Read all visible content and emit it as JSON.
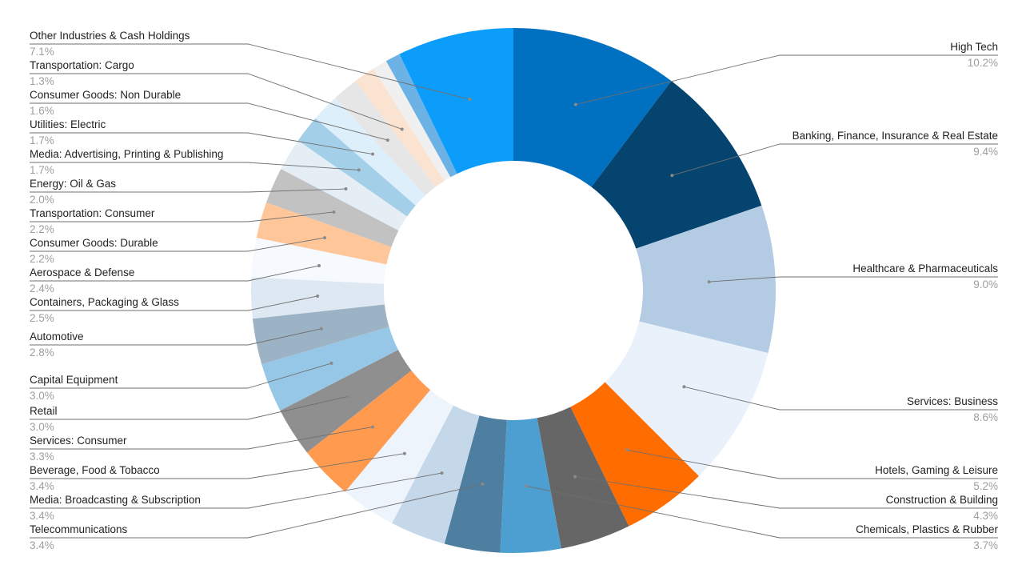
{
  "chart_data": {
    "type": "pie",
    "donut": true,
    "unit": "%",
    "legend": "none",
    "labels": "outside with leader lines",
    "slices": [
      {
        "name": "High Tech",
        "value": 10.2,
        "label": "10.2%",
        "color": "#0070c0"
      },
      {
        "name": "Banking, Finance, Insurance & Real Estate",
        "value": 9.4,
        "label": "9.4%",
        "color": "#064470"
      },
      {
        "name": "Healthcare & Pharmaceuticals",
        "value": 9.0,
        "label": "9.0%",
        "color": "#b3cce4"
      },
      {
        "name": "Services: Business",
        "value": 8.6,
        "label": "8.6%",
        "color": "#e9f1fb"
      },
      {
        "name": "Hotels, Gaming & Leisure",
        "value": 5.2,
        "label": "5.2%",
        "color": "#ff6d00"
      },
      {
        "name": "Construction & Building",
        "value": 4.3,
        "label": "4.3%",
        "color": "#666666"
      },
      {
        "name": "Chemicals, Plastics & Rubber",
        "value": 3.7,
        "label": "3.7%",
        "color": "#4e9fd1"
      },
      {
        "name": "Telecommunications",
        "value": 3.4,
        "label": "3.4%",
        "color": "#4f7fa0"
      },
      {
        "name": "Media: Broadcasting & Subscription",
        "value": 3.4,
        "label": "3.4%",
        "color": "#c5d8ea"
      },
      {
        "name": "Beverage, Food & Tobacco",
        "value": 3.4,
        "label": "3.4%",
        "color": "#eef4fc"
      },
      {
        "name": "Services: Consumer",
        "value": 3.3,
        "label": "3.3%",
        "color": "#ff9a4f"
      },
      {
        "name": "Retail",
        "value": 3.0,
        "label": "3.0%",
        "color": "#8f8f8f"
      },
      {
        "name": "Capital Equipment",
        "value": 3.0,
        "label": "3.0%",
        "color": "#97c7e6"
      },
      {
        "name": "Automotive",
        "value": 2.8,
        "label": "2.8%",
        "color": "#9cb3c5"
      },
      {
        "name": "Containers, Packaging & Glass",
        "value": 2.5,
        "label": "2.5%",
        "color": "#dde8f2"
      },
      {
        "name": "Aerospace & Defense",
        "value": 2.4,
        "label": "2.4%",
        "color": "#f6f9fd"
      },
      {
        "name": "Consumer Goods: Durable",
        "value": 2.2,
        "label": "2.2%",
        "color": "#ffc699"
      },
      {
        "name": "Transportation: Consumer",
        "value": 2.2,
        "label": "2.2%",
        "color": "#c2c2c2"
      },
      {
        "name": "Energy: Oil & Gas",
        "value": 2.0,
        "label": "2.0%",
        "color": "#e5eef5"
      },
      {
        "name": "Media: Advertising, Printing & Publishing",
        "value": 1.7,
        "label": "1.7%",
        "color": "#a4cfe9"
      },
      {
        "name": "Utilities: Electric",
        "value": 1.7,
        "label": "1.7%",
        "color": "#ddeffb"
      },
      {
        "name": "Consumer Goods: Non Durable",
        "value": 1.6,
        "label": "1.6%",
        "color": "#e6e6e6"
      },
      {
        "name": "Transportation: Cargo",
        "value": 1.3,
        "label": "1.3%",
        "color": "#fbe3d2"
      },
      {
        "name": "",
        "value": 0.9,
        "label": "",
        "color": "#f0f0f0"
      },
      {
        "name": "",
        "value": 0.9,
        "label": "",
        "color": "#6cb2e5"
      },
      {
        "name": "Other Industries & Cash Holdings",
        "value": 7.1,
        "label": "7.1%",
        "color": "#0c9dfb"
      }
    ]
  }
}
